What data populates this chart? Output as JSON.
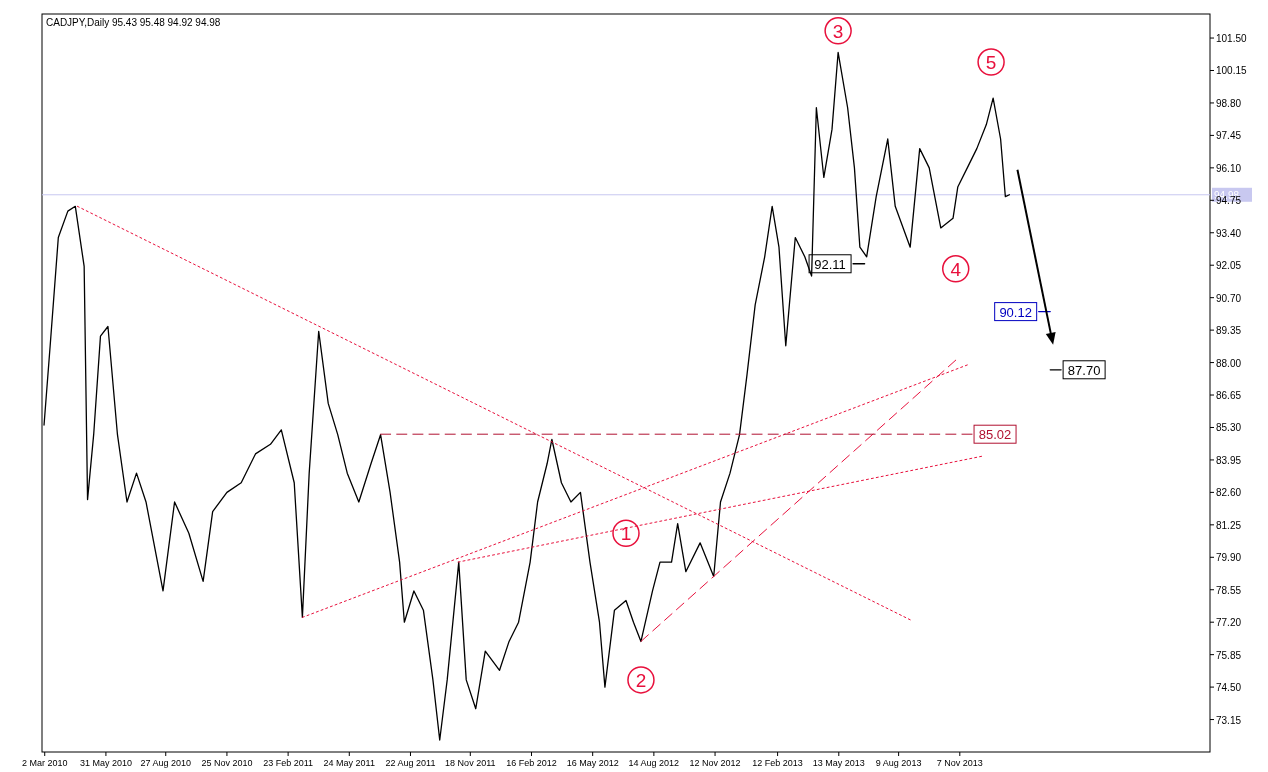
{
  "chart_data": {
    "type": "line",
    "title": "CADJPY,Daily 95.43 95.48 94.92 94.98",
    "xlim": [
      "2010-02-26",
      "2014-11-10"
    ],
    "ylim": [
      71.8,
      102.5
    ],
    "xticks": [
      {
        "value": "2010-03-02",
        "label": "2 Mar 2010"
      },
      {
        "value": "2010-05-31",
        "label": "31 May 2010"
      },
      {
        "value": "2010-08-27",
        "label": "27 Aug 2010"
      },
      {
        "value": "2010-11-25",
        "label": "25 Nov 2010"
      },
      {
        "value": "2011-02-23",
        "label": "23 Feb 2011"
      },
      {
        "value": "2011-05-24",
        "label": "24 May 2011"
      },
      {
        "value": "2011-08-22",
        "label": "22 Aug 2011"
      },
      {
        "value": "2011-11-18",
        "label": "18 Nov 2011"
      },
      {
        "value": "2012-02-16",
        "label": "16 Feb 2012"
      },
      {
        "value": "2012-05-16",
        "label": "16 May 2012"
      },
      {
        "value": "2012-08-14",
        "label": "14 Aug 2012"
      },
      {
        "value": "2012-11-12",
        "label": "12 Nov 2012"
      },
      {
        "value": "2013-02-12",
        "label": "12 Feb 2013"
      },
      {
        "value": "2013-05-13",
        "label": "13 May 2013"
      },
      {
        "value": "2013-08-09",
        "label": "9 Aug 2013"
      },
      {
        "value": "2013-11-07",
        "label": "7 Nov 2013"
      }
    ],
    "yticks": [
      {
        "value": 73.15,
        "label": "73.15"
      },
      {
        "value": 74.5,
        "label": "74.50"
      },
      {
        "value": 75.85,
        "label": "75.85"
      },
      {
        "value": 77.2,
        "label": "77.20"
      },
      {
        "value": 78.55,
        "label": "78.55"
      },
      {
        "value": 79.9,
        "label": "79.90"
      },
      {
        "value": 81.25,
        "label": "81.25"
      },
      {
        "value": 82.6,
        "label": "82.60"
      },
      {
        "value": 83.95,
        "label": "83.95"
      },
      {
        "value": 85.3,
        "label": "85.30"
      },
      {
        "value": 86.65,
        "label": "86.65"
      },
      {
        "value": 88.0,
        "label": "88.00"
      },
      {
        "value": 89.35,
        "label": "89.35"
      },
      {
        "value": 90.7,
        "label": "90.70"
      },
      {
        "value": 92.05,
        "label": "92.05"
      },
      {
        "value": 93.4,
        "label": "93.40"
      },
      {
        "value": 94.75,
        "label": "94.75"
      },
      {
        "value": 96.1,
        "label": "96.10"
      },
      {
        "value": 97.45,
        "label": "97.45"
      },
      {
        "value": 98.8,
        "label": "98.80"
      },
      {
        "value": 100.15,
        "label": "100.15"
      },
      {
        "value": 101.5,
        "label": "101.50"
      }
    ],
    "grid": false,
    "series": [
      {
        "color": "#000000",
        "line_style": "solid",
        "x": [
          "2010-03-01",
          "2010-03-10",
          "2010-03-22",
          "2010-04-05",
          "2010-04-16",
          "2010-04-29",
          "2010-05-04",
          "2010-05-13",
          "2010-05-23",
          "2010-06-03",
          "2010-06-17",
          "2010-07-01",
          "2010-07-15",
          "2010-07-29",
          "2010-08-23",
          "2010-09-09",
          "2010-09-30",
          "2010-10-21",
          "2010-11-04",
          "2010-11-25",
          "2010-12-16",
          "2011-01-06",
          "2011-01-28",
          "2011-02-13",
          "2011-03-04",
          "2011-03-16",
          "2011-03-26",
          "2011-04-09",
          "2011-04-23",
          "2011-05-07",
          "2011-05-21",
          "2011-06-07",
          "2011-06-25",
          "2011-07-09",
          "2011-07-23",
          "2011-08-06",
          "2011-08-13",
          "2011-08-27",
          "2011-09-10",
          "2011-09-24",
          "2011-10-04",
          "2011-10-15",
          "2011-11-01",
          "2011-11-12",
          "2011-11-26",
          "2011-12-10",
          "2011-12-31",
          "2012-01-14",
          "2012-01-28",
          "2012-02-14",
          "2012-02-25",
          "2012-03-10",
          "2012-03-17",
          "2012-03-31",
          "2012-04-14",
          "2012-04-28",
          "2012-05-12",
          "2012-05-26",
          "2012-06-03",
          "2012-06-17",
          "2012-07-04",
          "2012-07-15",
          "2012-07-26",
          "2012-08-12",
          "2012-08-23",
          "2012-09-09",
          "2012-09-18",
          "2012-09-30",
          "2012-10-21",
          "2012-11-10",
          "2012-11-20",
          "2012-12-04",
          "2012-12-18",
          "2012-12-29",
          "2013-01-10",
          "2013-01-24",
          "2013-02-04",
          "2013-02-14",
          "2013-02-24",
          "2013-03-10",
          "2013-03-24",
          "2013-04-03",
          "2013-04-10",
          "2013-04-21",
          "2013-05-03",
          "2013-05-12",
          "2013-05-26",
          "2013-06-05",
          "2013-06-13",
          "2013-06-23",
          "2013-07-07",
          "2013-07-24",
          "2013-08-04",
          "2013-08-26",
          "2013-09-09",
          "2013-09-23",
          "2013-10-10",
          "2013-10-28",
          "2013-11-04",
          "2013-11-18",
          "2013-12-02",
          "2013-12-16",
          "2013-12-26",
          "2014-01-06",
          "2014-01-13",
          "2014-01-19"
        ],
        "values": [
          85.4,
          88.7,
          93.2,
          94.3,
          94.5,
          92.0,
          82.3,
          85.0,
          89.1,
          89.5,
          85.0,
          82.2,
          83.4,
          82.2,
          78.5,
          82.2,
          80.9,
          78.9,
          81.8,
          82.6,
          83.0,
          84.2,
          84.6,
          85.2,
          83.0,
          77.4,
          83.4,
          89.3,
          86.3,
          85.0,
          83.4,
          82.2,
          83.8,
          85.0,
          82.6,
          79.7,
          77.2,
          78.5,
          77.7,
          74.8,
          72.3,
          74.8,
          79.7,
          74.8,
          73.6,
          76.0,
          75.2,
          76.4,
          77.2,
          79.7,
          82.2,
          83.8,
          84.8,
          83.0,
          82.2,
          82.6,
          79.7,
          77.2,
          74.5,
          77.7,
          78.1,
          77.2,
          76.4,
          78.5,
          79.7,
          79.7,
          81.3,
          79.3,
          80.5,
          79.1,
          82.2,
          83.4,
          85.0,
          87.5,
          90.4,
          92.4,
          94.5,
          92.8,
          88.7,
          93.2,
          92.4,
          91.6,
          98.6,
          95.7,
          97.7,
          100.9,
          98.6,
          96.1,
          92.8,
          92.4,
          94.9,
          97.3,
          94.5,
          92.8,
          96.9,
          96.1,
          93.6,
          94.0,
          95.3,
          96.1,
          96.9,
          97.9,
          99.0,
          97.3,
          94.9,
          94.98
        ]
      },
      {
        "type": "line",
        "color": "#e8103c",
        "line_style": "dotted",
        "x": [
          "2010-04-19",
          "2013-08-26"
        ],
        "values": [
          94.5,
          77.3
        ]
      },
      {
        "type": "line",
        "color": "#e8103c",
        "line_style": "dotted",
        "x": [
          "2011-03-16",
          "2013-11-18"
        ],
        "values": [
          77.4,
          87.9
        ]
      },
      {
        "type": "line",
        "color": "#e8103c",
        "line_style": "dotted",
        "x": [
          "2011-10-31",
          "2013-12-09"
        ],
        "values": [
          79.7,
          84.1
        ]
      },
      {
        "type": "line",
        "color": "#e8103c",
        "line_style": "dashed",
        "x": [
          "2012-07-26",
          "2013-11-01"
        ],
        "values": [
          76.4,
          88.1
        ]
      },
      {
        "type": "line",
        "color": "#b01030",
        "line_style": "dashed",
        "x": [
          "2011-07-09",
          "2013-11-25"
        ],
        "values": [
          85.02,
          85.02
        ]
      },
      {
        "type": "line",
        "color": "#000000",
        "line_style": "solid",
        "x": [
          "2013-06-03",
          "2013-06-20"
        ],
        "values": [
          92.11,
          92.11
        ]
      },
      {
        "type": "line",
        "color": "#0000c0",
        "line_style": "solid",
        "x": [
          "2014-03-03",
          "2014-03-20"
        ],
        "values": [
          90.12,
          90.12
        ]
      },
      {
        "type": "line",
        "color": "#000000",
        "line_style": "solid",
        "x": [
          "2014-03-20",
          "2014-04-05"
        ],
        "values": [
          87.7,
          87.7
        ]
      }
    ],
    "ref_lines": [
      {
        "axis": "y",
        "value": 94.98,
        "label": "94.98",
        "color": "#c8c8f0"
      }
    ],
    "annotations": [
      {
        "text": "1",
        "x": "2012-07-04",
        "y": 80.9
      },
      {
        "text": "2",
        "x": "2012-07-26",
        "y": 74.8
      },
      {
        "text": "3",
        "x": "2013-05-12",
        "y": 101.8
      },
      {
        "text": "4",
        "x": "2013-11-01",
        "y": 91.9
      },
      {
        "text": "5",
        "x": "2013-12-23",
        "y": 100.5
      },
      {
        "text": "92.11",
        "x": "2013-06-03",
        "y": 92.11
      },
      {
        "text": "85.02",
        "x": "2013-11-25",
        "y": 85.02
      },
      {
        "text": "90.12",
        "x": "2014-03-03",
        "y": 90.12
      },
      {
        "text": "87.70",
        "x": "2014-04-05",
        "y": 87.7
      }
    ]
  }
}
